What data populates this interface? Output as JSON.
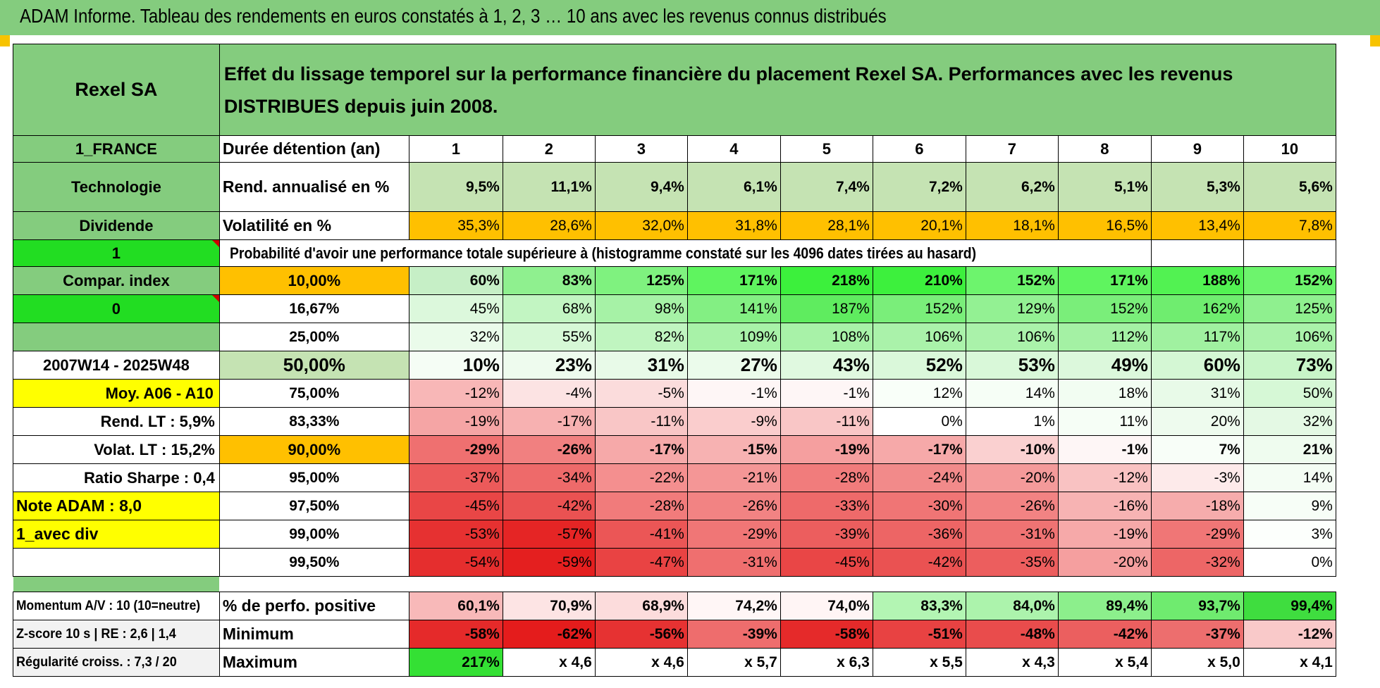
{
  "title": "ADAM Informe. Tableau des rendements en euros constatés à 1, 2, 3 … 10 ans avec les revenus connus distribués",
  "header": {
    "company": "Rexel SA",
    "description": "Effet du lissage temporel sur la performance financière du placement Rexel SA. Performances avec les revenus DISTRIBUES depuis juin 2008."
  },
  "left_labels": {
    "country": "1_FRANCE",
    "sector": "Technologie",
    "type": "Dividende",
    "flag1": "1",
    "compar": "Compar. index",
    "flag0": "0",
    "period": "2007W14 - 2025W48",
    "moy": "Moy. A06 - A10",
    "rend_lt": "Rend. LT :    5,9%",
    "volat_lt": "Volat. LT :    15,2%",
    "sharpe": "Ratio Sharpe :    0,4",
    "note": "Note ADAM : 8,0",
    "avec_div": "1_avec div",
    "momentum": "Momentum A/V : 10 (10=neutre)",
    "zscore": "Z-score 10 s | RE : 2,6 | 1,4",
    "regularite": "Régularité croiss. : 7,3 / 20"
  },
  "row_labels": {
    "duree": "Durée détention (an)",
    "rend": "Rend. annualisé en %",
    "vol": "Volatilité en %",
    "proba": "Probabilité d'avoir une performance totale supérieure à (histogramme constaté sur les 4096 dates tirées au hasard)",
    "pos": "% de perfo. positive",
    "min": "Minimum",
    "max": "Maximum"
  },
  "years": [
    "1",
    "2",
    "3",
    "4",
    "5",
    "6",
    "7",
    "8",
    "9",
    "10"
  ],
  "rendement": [
    "9,5%",
    "11,1%",
    "9,4%",
    "6,1%",
    "7,4%",
    "7,2%",
    "6,2%",
    "5,1%",
    "5,3%",
    "5,6%"
  ],
  "volatilite": [
    "35,3%",
    "28,6%",
    "32,0%",
    "31,8%",
    "28,1%",
    "20,1%",
    "18,1%",
    "16,5%",
    "13,4%",
    "7,8%"
  ],
  "quantiles": [
    {
      "label": "10,00%",
      "values": [
        "60%",
        "83%",
        "125%",
        "171%",
        "218%",
        "210%",
        "152%",
        "171%",
        "188%",
        "152%"
      ]
    },
    {
      "label": "16,67%",
      "values": [
        "45%",
        "68%",
        "98%",
        "141%",
        "187%",
        "152%",
        "129%",
        "152%",
        "162%",
        "125%"
      ]
    },
    {
      "label": "25,00%",
      "values": [
        "32%",
        "55%",
        "82%",
        "109%",
        "108%",
        "106%",
        "106%",
        "112%",
        "117%",
        "106%"
      ]
    },
    {
      "label": "50,00%",
      "values": [
        "10%",
        "23%",
        "31%",
        "27%",
        "43%",
        "52%",
        "53%",
        "49%",
        "60%",
        "73%"
      ]
    },
    {
      "label": "75,00%",
      "values": [
        "-12%",
        "-4%",
        "-5%",
        "-1%",
        "-1%",
        "12%",
        "14%",
        "18%",
        "31%",
        "50%"
      ]
    },
    {
      "label": "83,33%",
      "values": [
        "-19%",
        "-17%",
        "-11%",
        "-9%",
        "-11%",
        "0%",
        "1%",
        "11%",
        "20%",
        "32%"
      ]
    },
    {
      "label": "90,00%",
      "values": [
        "-29%",
        "-26%",
        "-17%",
        "-15%",
        "-19%",
        "-17%",
        "-10%",
        "-1%",
        "7%",
        "21%"
      ]
    },
    {
      "label": "95,00%",
      "values": [
        "-37%",
        "-34%",
        "-22%",
        "-21%",
        "-28%",
        "-24%",
        "-20%",
        "-12%",
        "-3%",
        "14%"
      ]
    },
    {
      "label": "97,50%",
      "values": [
        "-45%",
        "-42%",
        "-28%",
        "-26%",
        "-33%",
        "-30%",
        "-26%",
        "-16%",
        "-18%",
        "9%"
      ]
    },
    {
      "label": "99,00%",
      "values": [
        "-53%",
        "-57%",
        "-41%",
        "-29%",
        "-39%",
        "-36%",
        "-31%",
        "-19%",
        "-29%",
        "3%"
      ]
    },
    {
      "label": "99,50%",
      "values": [
        "-54%",
        "-59%",
        "-47%",
        "-31%",
        "-45%",
        "-42%",
        "-35%",
        "-20%",
        "-32%",
        "0%"
      ]
    }
  ],
  "perf_positive": [
    "60,1%",
    "70,9%",
    "68,9%",
    "74,2%",
    "74,0%",
    "83,3%",
    "84,0%",
    "89,4%",
    "93,7%",
    "99,4%"
  ],
  "minimum": [
    "-58%",
    "-62%",
    "-56%",
    "-39%",
    "-58%",
    "-51%",
    "-48%",
    "-42%",
    "-37%",
    "-12%"
  ],
  "maximum": [
    "217%",
    "x 4,6",
    "x 4,6",
    "x 5,7",
    "x 6,3",
    "x 5,5",
    "x 4,3",
    "x 5,4",
    "x 5,0",
    "x 4,1"
  ],
  "colors": {
    "header_green": "#84cc7e",
    "light_green": "#c5e3b3",
    "bright_green": "#22dd22",
    "orange": "#ffc000",
    "yellow": "#ffff00",
    "red_text": "#e0142b"
  }
}
